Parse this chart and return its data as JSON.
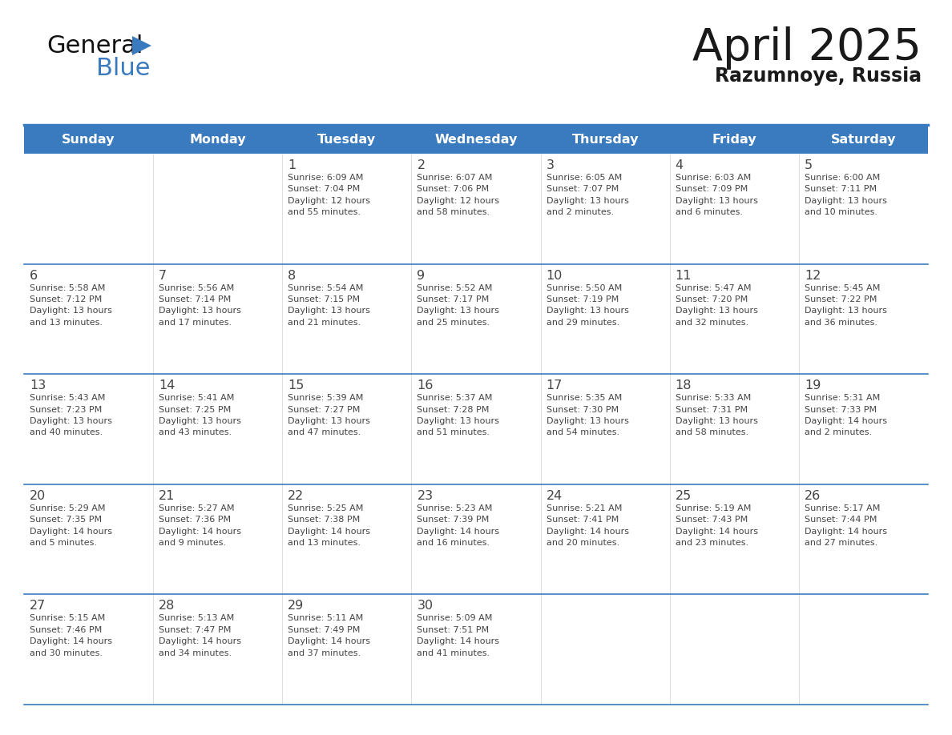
{
  "title": "April 2025",
  "subtitle": "Razumnoye, Russia",
  "header_color": "#3a7bbf",
  "header_text_color": "#ffffff",
  "cell_bg_color": "#ffffff",
  "row_sep_color": "#3a7bbf",
  "text_color": "#444444",
  "days_of_week": [
    "Sunday",
    "Monday",
    "Tuesday",
    "Wednesday",
    "Thursday",
    "Friday",
    "Saturday"
  ],
  "weeks": [
    [
      {
        "day": "",
        "info": ""
      },
      {
        "day": "",
        "info": ""
      },
      {
        "day": "1",
        "info": "Sunrise: 6:09 AM\nSunset: 7:04 PM\nDaylight: 12 hours\nand 55 minutes."
      },
      {
        "day": "2",
        "info": "Sunrise: 6:07 AM\nSunset: 7:06 PM\nDaylight: 12 hours\nand 58 minutes."
      },
      {
        "day": "3",
        "info": "Sunrise: 6:05 AM\nSunset: 7:07 PM\nDaylight: 13 hours\nand 2 minutes."
      },
      {
        "day": "4",
        "info": "Sunrise: 6:03 AM\nSunset: 7:09 PM\nDaylight: 13 hours\nand 6 minutes."
      },
      {
        "day": "5",
        "info": "Sunrise: 6:00 AM\nSunset: 7:11 PM\nDaylight: 13 hours\nand 10 minutes."
      }
    ],
    [
      {
        "day": "6",
        "info": "Sunrise: 5:58 AM\nSunset: 7:12 PM\nDaylight: 13 hours\nand 13 minutes."
      },
      {
        "day": "7",
        "info": "Sunrise: 5:56 AM\nSunset: 7:14 PM\nDaylight: 13 hours\nand 17 minutes."
      },
      {
        "day": "8",
        "info": "Sunrise: 5:54 AM\nSunset: 7:15 PM\nDaylight: 13 hours\nand 21 minutes."
      },
      {
        "day": "9",
        "info": "Sunrise: 5:52 AM\nSunset: 7:17 PM\nDaylight: 13 hours\nand 25 minutes."
      },
      {
        "day": "10",
        "info": "Sunrise: 5:50 AM\nSunset: 7:19 PM\nDaylight: 13 hours\nand 29 minutes."
      },
      {
        "day": "11",
        "info": "Sunrise: 5:47 AM\nSunset: 7:20 PM\nDaylight: 13 hours\nand 32 minutes."
      },
      {
        "day": "12",
        "info": "Sunrise: 5:45 AM\nSunset: 7:22 PM\nDaylight: 13 hours\nand 36 minutes."
      }
    ],
    [
      {
        "day": "13",
        "info": "Sunrise: 5:43 AM\nSunset: 7:23 PM\nDaylight: 13 hours\nand 40 minutes."
      },
      {
        "day": "14",
        "info": "Sunrise: 5:41 AM\nSunset: 7:25 PM\nDaylight: 13 hours\nand 43 minutes."
      },
      {
        "day": "15",
        "info": "Sunrise: 5:39 AM\nSunset: 7:27 PM\nDaylight: 13 hours\nand 47 minutes."
      },
      {
        "day": "16",
        "info": "Sunrise: 5:37 AM\nSunset: 7:28 PM\nDaylight: 13 hours\nand 51 minutes."
      },
      {
        "day": "17",
        "info": "Sunrise: 5:35 AM\nSunset: 7:30 PM\nDaylight: 13 hours\nand 54 minutes."
      },
      {
        "day": "18",
        "info": "Sunrise: 5:33 AM\nSunset: 7:31 PM\nDaylight: 13 hours\nand 58 minutes."
      },
      {
        "day": "19",
        "info": "Sunrise: 5:31 AM\nSunset: 7:33 PM\nDaylight: 14 hours\nand 2 minutes."
      }
    ],
    [
      {
        "day": "20",
        "info": "Sunrise: 5:29 AM\nSunset: 7:35 PM\nDaylight: 14 hours\nand 5 minutes."
      },
      {
        "day": "21",
        "info": "Sunrise: 5:27 AM\nSunset: 7:36 PM\nDaylight: 14 hours\nand 9 minutes."
      },
      {
        "day": "22",
        "info": "Sunrise: 5:25 AM\nSunset: 7:38 PM\nDaylight: 14 hours\nand 13 minutes."
      },
      {
        "day": "23",
        "info": "Sunrise: 5:23 AM\nSunset: 7:39 PM\nDaylight: 14 hours\nand 16 minutes."
      },
      {
        "day": "24",
        "info": "Sunrise: 5:21 AM\nSunset: 7:41 PM\nDaylight: 14 hours\nand 20 minutes."
      },
      {
        "day": "25",
        "info": "Sunrise: 5:19 AM\nSunset: 7:43 PM\nDaylight: 14 hours\nand 23 minutes."
      },
      {
        "day": "26",
        "info": "Sunrise: 5:17 AM\nSunset: 7:44 PM\nDaylight: 14 hours\nand 27 minutes."
      }
    ],
    [
      {
        "day": "27",
        "info": "Sunrise: 5:15 AM\nSunset: 7:46 PM\nDaylight: 14 hours\nand 30 minutes."
      },
      {
        "day": "28",
        "info": "Sunrise: 5:13 AM\nSunset: 7:47 PM\nDaylight: 14 hours\nand 34 minutes."
      },
      {
        "day": "29",
        "info": "Sunrise: 5:11 AM\nSunset: 7:49 PM\nDaylight: 14 hours\nand 37 minutes."
      },
      {
        "day": "30",
        "info": "Sunrise: 5:09 AM\nSunset: 7:51 PM\nDaylight: 14 hours\nand 41 minutes."
      },
      {
        "day": "",
        "info": ""
      },
      {
        "day": "",
        "info": ""
      },
      {
        "day": "",
        "info": ""
      }
    ]
  ]
}
